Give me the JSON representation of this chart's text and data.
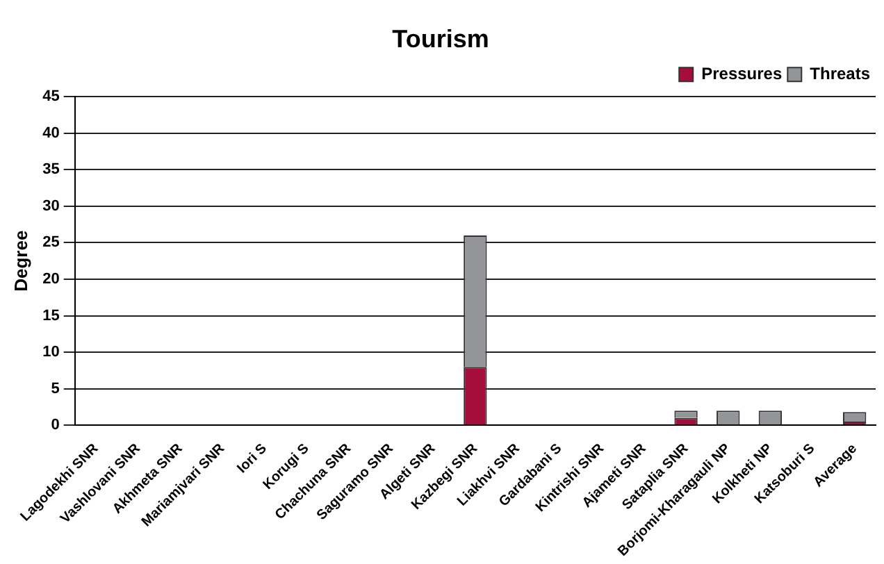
{
  "chart_data": {
    "type": "bar",
    "title": "Tourism",
    "ylabel": "Degree",
    "stacked": true,
    "categories": [
      "Lagodekhi SNR",
      "Vashlovani SNR",
      "Akhmeta SNR",
      "Mariamjvari SNR",
      "Iori S",
      "Korugi S",
      "Chachuna SNR",
      "Saguramo SNR",
      "Algeti SNR",
      "Kazbegi SNR",
      "Liakhvi SNR",
      "Gardabani S",
      "Kintrishi SNR",
      "Ajameti SNR",
      "Sataplia SNR",
      "Borjomi-Kharagauli NP",
      "Kolkheti NP",
      "Katsoburi S",
      "Average"
    ],
    "series": [
      {
        "name": "Pressures",
        "color": "#a50d3a",
        "values": [
          0,
          0,
          0,
          0,
          0,
          0,
          0,
          0,
          0,
          8,
          0,
          0,
          0,
          0,
          1,
          0,
          0,
          0,
          0.5
        ]
      },
      {
        "name": "Threats",
        "color": "#939598",
        "values": [
          0,
          0,
          0,
          0,
          0,
          0,
          0,
          0,
          0,
          18,
          0,
          0,
          0,
          0,
          1,
          2,
          2,
          0,
          1.3
        ]
      }
    ],
    "ylim": [
      0,
      45
    ],
    "yticks": [
      0,
      5,
      10,
      15,
      20,
      25,
      30,
      35,
      40,
      45
    ],
    "grid": "y",
    "legend": "top right"
  }
}
